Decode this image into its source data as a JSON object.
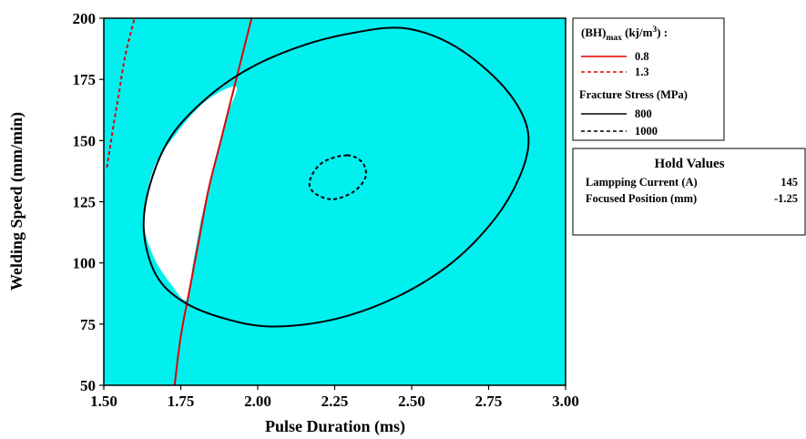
{
  "chart_data": {
    "type": "contour",
    "xlabel": "Pulse Duration (ms)",
    "ylabel": "Welding Speed (mm/min)",
    "xlim": [
      1.5,
      3.0
    ],
    "ylim": [
      50,
      200
    ],
    "x_ticks": [
      "1.50",
      "1.75",
      "2.00",
      "2.25",
      "2.50",
      "2.75",
      "3.00"
    ],
    "y_ticks": [
      "50",
      "75",
      "100",
      "125",
      "150",
      "175",
      "200"
    ],
    "grid": false,
    "legend_position": "right",
    "colors": {
      "background": "#00f0f0",
      "feasible_region": "#ffffff",
      "bh_contour": "#e00000",
      "stress_contour": "#000000"
    },
    "feasible_region": [
      {
        "x": 1.93,
        "y": 172
      },
      {
        "x": 1.9,
        "y": 160
      },
      {
        "x": 1.86,
        "y": 140
      },
      {
        "x": 1.82,
        "y": 120
      },
      {
        "x": 1.79,
        "y": 100
      },
      {
        "x": 1.77,
        "y": 85
      },
      {
        "x": 1.72,
        "y": 91
      },
      {
        "x": 1.66,
        "y": 103
      },
      {
        "x": 1.63,
        "y": 118
      },
      {
        "x": 1.66,
        "y": 138
      },
      {
        "x": 1.73,
        "y": 152
      },
      {
        "x": 1.83,
        "y": 166
      }
    ],
    "series": [
      {
        "group": "bh",
        "name": "0.8",
        "color": "#e00000",
        "dash": "solid",
        "points": [
          {
            "x": 1.73,
            "y": 50
          },
          {
            "x": 1.75,
            "y": 70
          },
          {
            "x": 1.78,
            "y": 90
          },
          {
            "x": 1.81,
            "y": 110
          },
          {
            "x": 1.84,
            "y": 130
          },
          {
            "x": 1.88,
            "y": 150
          },
          {
            "x": 1.92,
            "y": 170
          },
          {
            "x": 1.96,
            "y": 190
          },
          {
            "x": 1.98,
            "y": 200
          }
        ]
      },
      {
        "group": "bh",
        "name": "1.3",
        "color": "#e00000",
        "dash": "dashed",
        "points": [
          {
            "x": 1.51,
            "y": 139
          },
          {
            "x": 1.53,
            "y": 155
          },
          {
            "x": 1.55,
            "y": 170
          },
          {
            "x": 1.57,
            "y": 185
          },
          {
            "x": 1.6,
            "y": 200
          }
        ]
      },
      {
        "group": "stress",
        "name": "800",
        "color": "#000000",
        "dash": "solid",
        "closed": true,
        "points": [
          {
            "x": 2.47,
            "y": 196
          },
          {
            "x": 2.62,
            "y": 190
          },
          {
            "x": 2.76,
            "y": 177
          },
          {
            "x": 2.85,
            "y": 163
          },
          {
            "x": 2.88,
            "y": 150
          },
          {
            "x": 2.85,
            "y": 135
          },
          {
            "x": 2.77,
            "y": 118
          },
          {
            "x": 2.63,
            "y": 100
          },
          {
            "x": 2.45,
            "y": 86
          },
          {
            "x": 2.25,
            "y": 77
          },
          {
            "x": 2.05,
            "y": 74
          },
          {
            "x": 1.9,
            "y": 77
          },
          {
            "x": 1.76,
            "y": 84
          },
          {
            "x": 1.67,
            "y": 95
          },
          {
            "x": 1.63,
            "y": 113
          },
          {
            "x": 1.65,
            "y": 132
          },
          {
            "x": 1.72,
            "y": 152
          },
          {
            "x": 1.84,
            "y": 168
          },
          {
            "x": 1.98,
            "y": 180
          },
          {
            "x": 2.15,
            "y": 189
          },
          {
            "x": 2.31,
            "y": 194
          }
        ]
      },
      {
        "group": "stress",
        "name": "1000",
        "color": "#000000",
        "dash": "dashed",
        "closed": true,
        "points": [
          {
            "x": 2.29,
            "y": 144
          },
          {
            "x": 2.34,
            "y": 141
          },
          {
            "x": 2.35,
            "y": 135
          },
          {
            "x": 2.31,
            "y": 129
          },
          {
            "x": 2.24,
            "y": 126
          },
          {
            "x": 2.18,
            "y": 129
          },
          {
            "x": 2.17,
            "y": 134
          },
          {
            "x": 2.21,
            "y": 141
          }
        ]
      }
    ],
    "legend": {
      "bh_title_main": "(BH)",
      "bh_title_sub": "max",
      "bh_title_unit": " (kj/m",
      "bh_title_sup": "3",
      "bh_title_end": ") :",
      "stress_title": "Fracture Stress (MPa)"
    },
    "hold_values": {
      "title": "Hold Values",
      "rows": [
        {
          "label": "Lampping Current (A)",
          "value": "145"
        },
        {
          "label": "Focused Position (mm)",
          "value": "-1.25"
        }
      ]
    }
  }
}
